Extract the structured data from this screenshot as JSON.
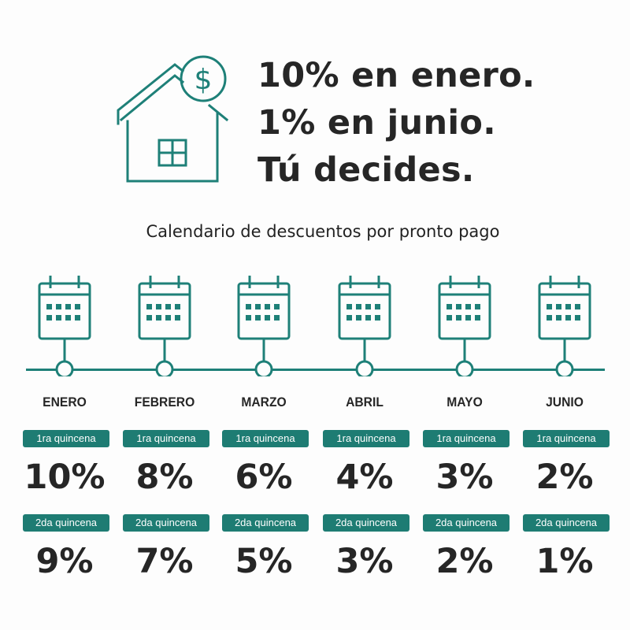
{
  "headline": {
    "line1": "10% en enero.",
    "line2": "1% en junio.",
    "line3": "Tú decides."
  },
  "icons": {
    "hero": "house-dollar-icon",
    "calendar": "calendar-icon"
  },
  "colors": {
    "accent": "#1e7c73",
    "text": "#262626",
    "background": "#fdfdfd"
  },
  "subtitle": "Calendario de descuentos por pronto pago",
  "months": [
    {
      "name": "ENERO",
      "q1_label": "1ra quincena",
      "q1": "10%",
      "q2_label": "2da quincena",
      "q2": "9%"
    },
    {
      "name": "FEBRERO",
      "q1_label": "1ra quincena",
      "q1": "8%",
      "q2_label": "2da quincena",
      "q2": "7%"
    },
    {
      "name": "MARZO",
      "q1_label": "1ra quincena",
      "q1": "6%",
      "q2_label": "2da quincena",
      "q2": "5%"
    },
    {
      "name": "ABRIL",
      "q1_label": "1ra quincena",
      "q1": "4%",
      "q2_label": "2da quincena",
      "q2": "3%"
    },
    {
      "name": "MAYO",
      "q1_label": "1ra quincena",
      "q1": "3%",
      "q2_label": "2da quincena",
      "q2": "2%"
    },
    {
      "name": "JUNIO",
      "q1_label": "1ra quincena",
      "q1": "2%",
      "q2_label": "2da quincena",
      "q2": "1%"
    }
  ]
}
